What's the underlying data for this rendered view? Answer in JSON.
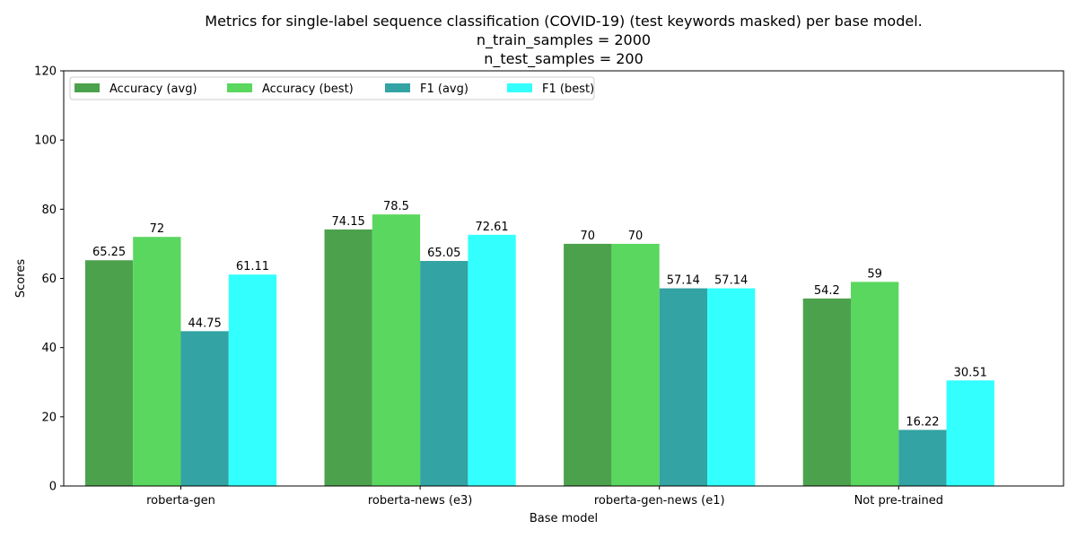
{
  "chart_data": {
    "type": "bar",
    "title_lines": [
      "Metrics for single-label sequence classification (COVID-19) (test keywords masked) per base model.",
      "n_train_samples = 2000",
      "n_test_samples = 200"
    ],
    "xlabel": "Base model",
    "ylabel": "Scores",
    "ylim": [
      0,
      120
    ],
    "yticks": [
      0,
      20,
      40,
      60,
      80,
      100,
      120
    ],
    "categories": [
      "roberta-gen",
      "roberta-news (e3)",
      "roberta-gen-news (e1)",
      "Not pre-trained"
    ],
    "series": [
      {
        "name": "Accuracy (avg)",
        "color": "#4ca24c",
        "values": [
          65.25,
          74.15,
          70,
          54.2
        ],
        "labels": [
          "65.25",
          "74.15",
          "70",
          "54.2"
        ]
      },
      {
        "name": "Accuracy (best)",
        "color": "#5ad75e",
        "values": [
          72,
          78.5,
          70,
          59
        ],
        "labels": [
          "72",
          "78.5",
          "70",
          "59"
        ]
      },
      {
        "name": "F1 (avg)",
        "color": "#33a3a3",
        "values": [
          44.75,
          65.05,
          57.14,
          16.22
        ],
        "labels": [
          "44.75",
          "65.05",
          "57.14",
          "16.22"
        ]
      },
      {
        "name": "F1 (best)",
        "color": "#33ffff",
        "values": [
          61.11,
          72.61,
          57.14,
          30.51
        ],
        "labels": [
          "61.11",
          "72.61",
          "57.14",
          "30.51"
        ]
      }
    ],
    "legend_position": "top-left",
    "grid": false
  }
}
